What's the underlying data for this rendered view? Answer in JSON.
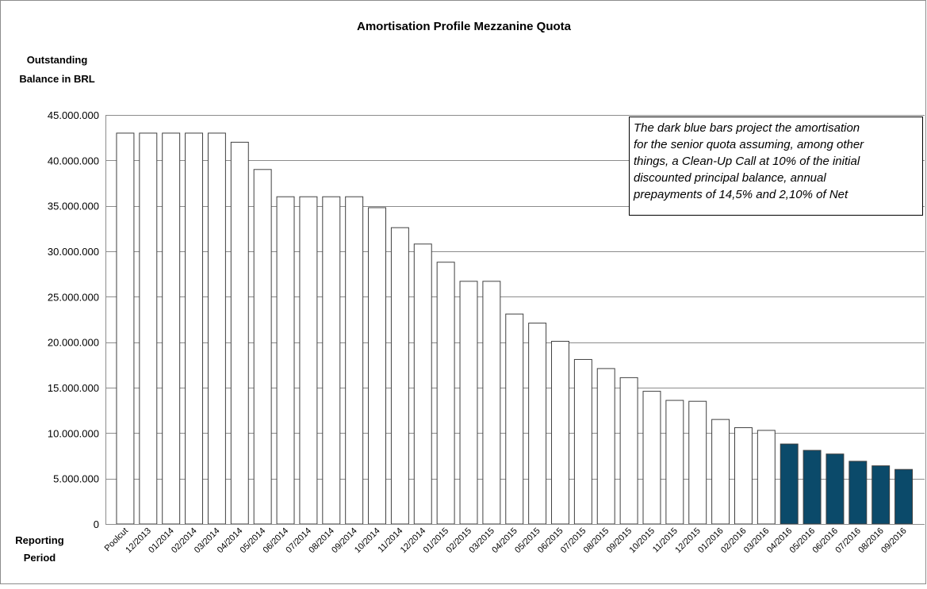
{
  "chart_data": {
    "type": "bar",
    "title": "Amortisation Profile Mezzanine Quota",
    "y_label": [
      "Outstanding",
      "Balance in BRL"
    ],
    "x_label": [
      "Reporting",
      "Period"
    ],
    "annotation": [
      "The dark blue bars project the amortisation",
      "for the senior quota assuming, among other",
      "things, a Clean-Up Call at 10% of the initial",
      "discounted principal balance, annual",
      "prepayments of 14,5% and 2,10% of Net"
    ],
    "categories": [
      "Poolcut",
      "12/2013",
      "01/2014",
      "02/2014",
      "03/2014",
      "04/2014",
      "05/2014",
      "06/2014",
      "07/2014",
      "08/2014",
      "09/2014",
      "10/2014",
      "11/2014",
      "12/2014",
      "01/2015",
      "02/2015",
      "03/2015",
      "04/2015",
      "05/2015",
      "06/2015",
      "07/2015",
      "08/2015",
      "09/2015",
      "10/2015",
      "11/2015",
      "12/2015",
      "01/2016",
      "02/2016",
      "03/2016",
      "04/2016",
      "05/2016",
      "06/2016",
      "07/2016",
      "08/2016",
      "09/2016"
    ],
    "values": [
      43000000,
      43000000,
      43000000,
      43000000,
      43000000,
      42000000,
      39000000,
      36000000,
      36000000,
      36000000,
      36000000,
      34800000,
      32600000,
      30800000,
      28800000,
      26700000,
      26700000,
      23100000,
      22100000,
      20100000,
      18100000,
      17100000,
      16100000,
      14600000,
      13600000,
      13500000,
      11500000,
      10600000,
      10300000,
      8800000,
      8100000,
      7700000,
      6900000,
      6400000,
      6000000
    ],
    "colors": [
      "#ffffff",
      "#ffffff",
      "#ffffff",
      "#ffffff",
      "#ffffff",
      "#ffffff",
      "#ffffff",
      "#ffffff",
      "#ffffff",
      "#ffffff",
      "#ffffff",
      "#ffffff",
      "#ffffff",
      "#ffffff",
      "#ffffff",
      "#ffffff",
      "#ffffff",
      "#ffffff",
      "#ffffff",
      "#ffffff",
      "#ffffff",
      "#ffffff",
      "#ffffff",
      "#ffffff",
      "#ffffff",
      "#ffffff",
      "#ffffff",
      "#ffffff",
      "#ffffff",
      "#0b4a6a",
      "#0b4a6a",
      "#0b4a6a",
      "#0b4a6a",
      "#0b4a6a",
      "#0b4a6a"
    ],
    "ylim": [
      0,
      45000000
    ],
    "yticks": [
      0,
      {
        "value": 5000000,
        "label": "5.000.000"
      },
      {
        "value": 10000000,
        "label": "10.000.000"
      },
      {
        "value": 15000000,
        "label": "15.000.000"
      },
      {
        "value": 20000000,
        "label": "20.000.000"
      },
      {
        "value": 25000000,
        "label": "25.000.000"
      },
      {
        "value": 30000000,
        "label": "30.000.000"
      },
      {
        "value": 35000000,
        "label": "35.000.000"
      },
      {
        "value": 40000000,
        "label": "40.000.000"
      },
      {
        "value": 45000000,
        "label": "45.000.000"
      }
    ],
    "grid": true
  }
}
